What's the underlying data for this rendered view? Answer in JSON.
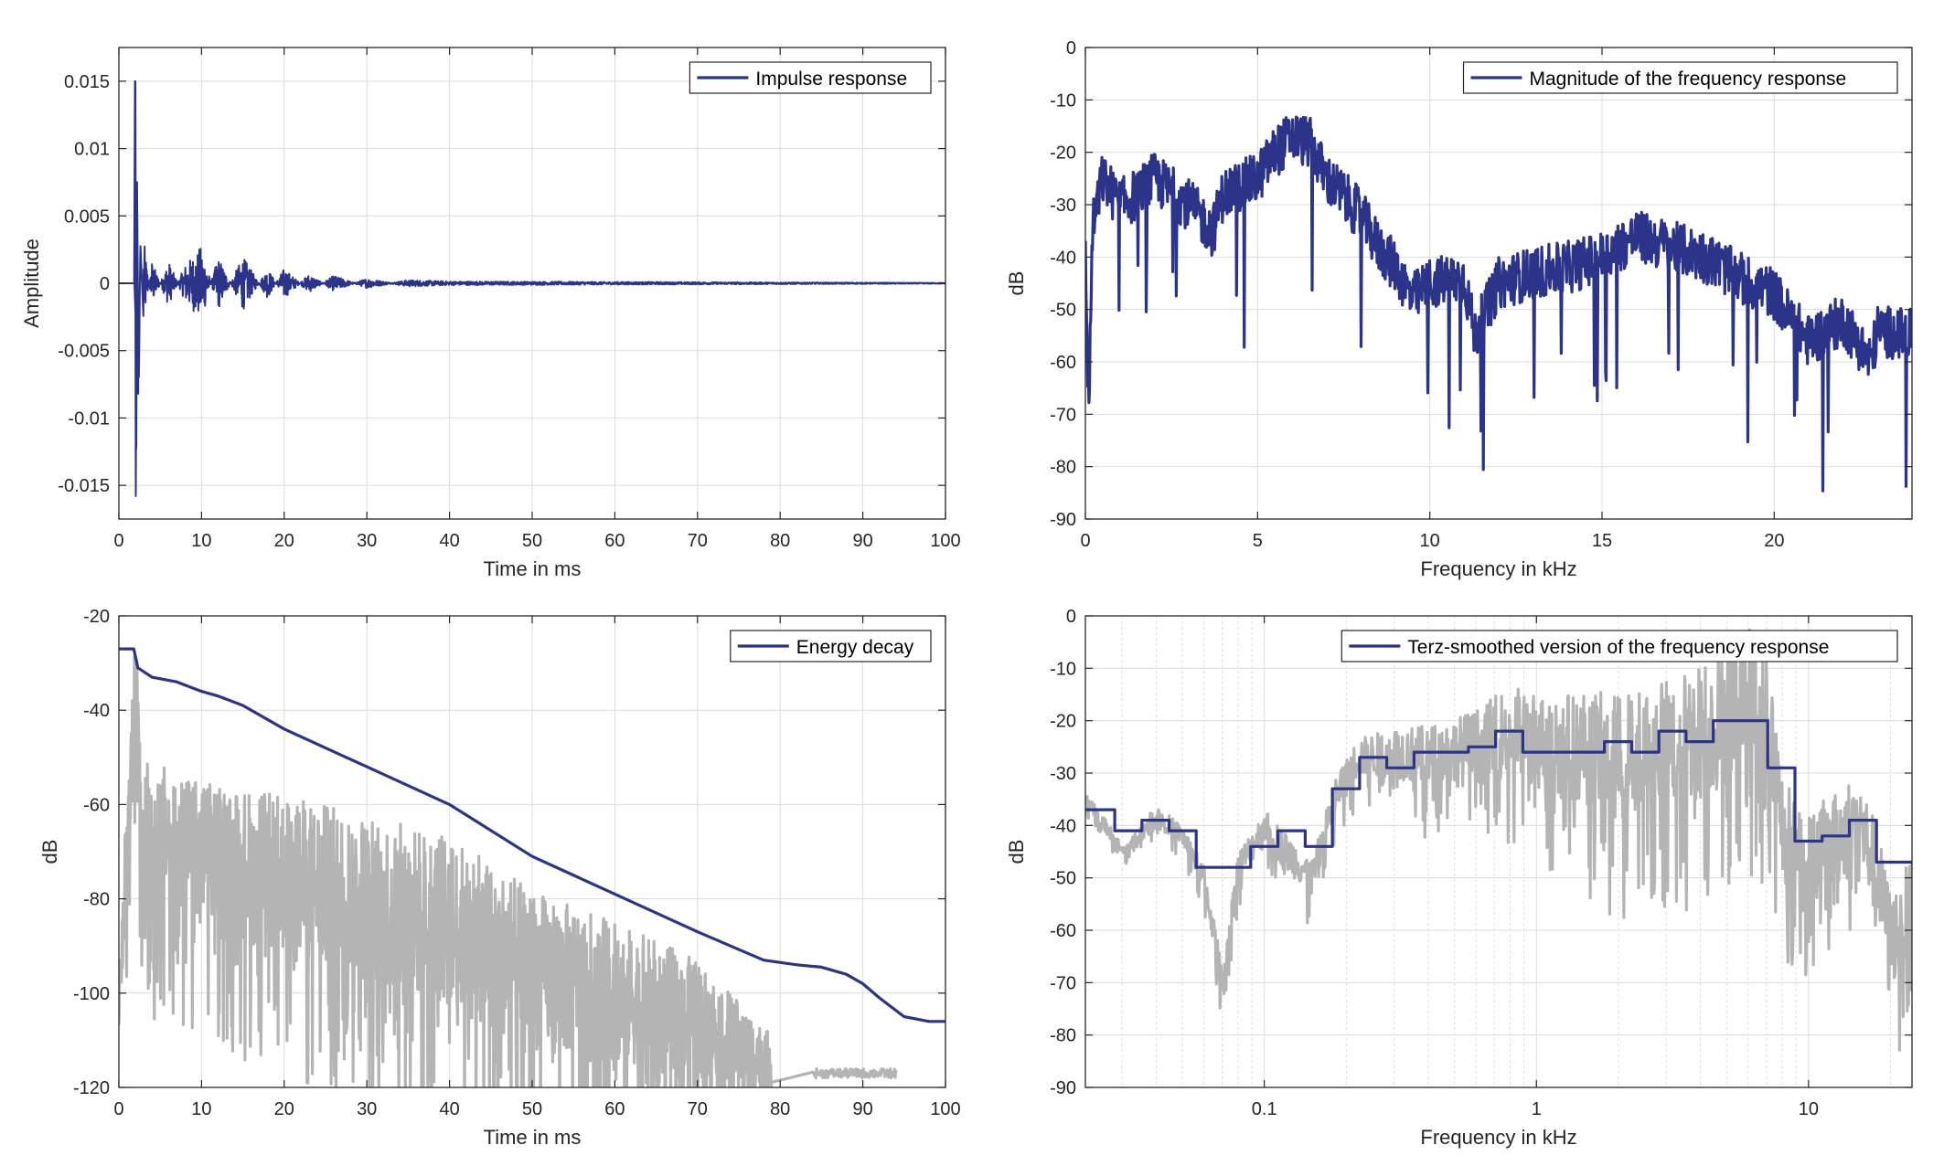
{
  "colors": {
    "primary": "#2b3488",
    "secondary": "#b4b4b4"
  },
  "chart_data": [
    {
      "id": "impulse",
      "type": "line",
      "ylabel": "Amplitude",
      "xlabel": "Time in ms",
      "xlim": [
        0,
        100
      ],
      "ylim": [
        -0.0175,
        0.0175
      ],
      "xticks": [
        0,
        10,
        20,
        30,
        40,
        50,
        60,
        70,
        80,
        90,
        100
      ],
      "yticks": [
        0.015,
        0.01,
        0.005,
        0,
        -0.005,
        -0.01,
        -0.015
      ],
      "ytick_labels": [
        "0.015",
        "0.01",
        "0.005",
        "0",
        "-0.005",
        "-0.01",
        "-0.015"
      ],
      "grid": true,
      "legend": "top-right",
      "series": [
        {
          "name": "Impulse response",
          "color": "#2b3488",
          "x": [
            0,
            1.9,
            2.0,
            2.1,
            2.2,
            2.4,
            2.6,
            3,
            4,
            6,
            8,
            10,
            12,
            15,
            18,
            20,
            23,
            26,
            30,
            35,
            40,
            100
          ],
          "y": [
            0,
            0,
            0.015,
            -0.0158,
            0.0075,
            -0.0082,
            0.003,
            -0.003,
            0.0015,
            -0.0015,
            0.0012,
            0.0025,
            -0.0018,
            0.0018,
            -0.001,
            0.001,
            -0.0006,
            0.0005,
            -0.0003,
            0.0002,
            0.0001,
            0
          ]
        }
      ]
    },
    {
      "id": "magnitude",
      "type": "line",
      "ylabel": "dB",
      "xlabel": "Frequency in kHz",
      "xlim": [
        0,
        24
      ],
      "ylim": [
        -90,
        0
      ],
      "xticks": [
        0,
        5,
        10,
        15,
        20
      ],
      "yticks": [
        0,
        -10,
        -20,
        -30,
        -40,
        -50,
        -60,
        -70,
        -80,
        -90
      ],
      "grid": true,
      "legend": "top-right",
      "series": [
        {
          "name": "Magnitude of the frequency response",
          "color": "#2b3488",
          "x": [
            0,
            0.1,
            0.2,
            0.5,
            1,
            1.5,
            2,
            3,
            3.7,
            4,
            5,
            5.5,
            6,
            6.5,
            7,
            8,
            8.5,
            9,
            9.5,
            10,
            11,
            11.3,
            12,
            13,
            14,
            15,
            16,
            17,
            18,
            19,
            20,
            20.5,
            21,
            22,
            22.8,
            23,
            24
          ],
          "y": [
            -40,
            -70,
            -35,
            -25,
            -30,
            -28,
            -25,
            -30,
            -35,
            -28,
            -25,
            -20,
            -17,
            -18,
            -25,
            -32,
            -38,
            -42,
            -48,
            -45,
            -44,
            -55,
            -45,
            -43,
            -42,
            -40,
            -36,
            -38,
            -40,
            -44,
            -47,
            -52,
            -56,
            -52,
            -60,
            -54,
            -55
          ]
        }
      ]
    },
    {
      "id": "decay",
      "type": "line",
      "ylabel": "dB",
      "xlabel": "Time in ms",
      "xlim": [
        0,
        100
      ],
      "ylim": [
        -120,
        -20
      ],
      "xticks": [
        0,
        10,
        20,
        30,
        40,
        50,
        60,
        70,
        80,
        90,
        100
      ],
      "yticks": [
        -20,
        -40,
        -60,
        -80,
        -100,
        -120
      ],
      "grid": true,
      "legend": "top-right",
      "series": [
        {
          "name": "Energy decay",
          "color": "#2b3488",
          "x": [
            0,
            1.8,
            2.3,
            4,
            7,
            10,
            12,
            15,
            20,
            30,
            40,
            50,
            60,
            70,
            78,
            82,
            85,
            88,
            90,
            92,
            95,
            98,
            100
          ],
          "y": [
            -27,
            -27,
            -31,
            -33,
            -34,
            -36,
            -37,
            -39,
            -44,
            -52,
            -60,
            -71,
            -79,
            -87,
            -93,
            -94,
            -94.5,
            -96,
            -98,
            -101,
            -105,
            -106,
            -106
          ]
        },
        {
          "color": "#b4b4b4",
          "x": [
            0,
            2,
            3,
            10,
            20,
            30,
            40,
            50,
            60,
            70,
            79
          ],
          "y": [
            -100,
            -36,
            -65,
            -70,
            -75,
            -80,
            -85,
            -95,
            -100,
            -105,
            -115
          ],
          "spread": [
            15,
            20,
            25,
            25,
            28,
            30,
            30,
            28,
            25,
            20,
            10
          ]
        }
      ]
    },
    {
      "id": "terz",
      "type": "line",
      "ylabel": "dB",
      "xlabel": "Frequency in kHz",
      "xscale": "log",
      "xlim": [
        0.022,
        24
      ],
      "ylim": [
        -90,
        0
      ],
      "xticks": [
        0.1,
        1,
        10
      ],
      "xtick_labels": [
        "0.1",
        "1",
        "10"
      ],
      "yticks": [
        0,
        -10,
        -20,
        -30,
        -40,
        -50,
        -60,
        -70,
        -80,
        -90
      ],
      "grid": true,
      "legend": "top-right",
      "series": [
        {
          "name": "Terz-smoothed version of the frequency response",
          "color": "#2b3488",
          "x": [
            0.022,
            0.0282,
            0.0355,
            0.0447,
            0.0562,
            0.0708,
            0.0891,
            0.1122,
            0.1413,
            0.1778,
            0.2239,
            0.2818,
            0.3548,
            0.4467,
            0.5623,
            0.7079,
            0.8913,
            1.122,
            1.413,
            1.778,
            2.239,
            2.818,
            3.548,
            4.467,
            5.623,
            7.079,
            8.913,
            11.22,
            14.13,
            17.78,
            24
          ],
          "y": [
            -37,
            -41,
            -39,
            -41,
            -48,
            -48,
            -44,
            -41,
            -44,
            -33,
            -27,
            -29,
            -26,
            -26,
            -25,
            -22,
            -26,
            -26,
            -26,
            -24,
            -26,
            -22,
            -24,
            -20,
            -20,
            -29,
            -43,
            -42,
            -39,
            -47,
            -47
          ]
        },
        {
          "color": "#b4b4b4",
          "x": [
            0.022,
            0.03,
            0.04,
            0.05,
            0.06,
            0.07,
            0.08,
            0.1,
            0.12,
            0.15,
            0.18,
            0.22,
            0.3,
            0.4,
            0.6,
            0.8,
            1,
            1.5,
            2,
            3,
            4,
            5,
            6,
            7,
            8,
            9,
            12,
            15,
            18,
            20,
            24
          ],
          "y": [
            -35,
            -45,
            -38,
            -42,
            -50,
            -70,
            -48,
            -40,
            -45,
            -50,
            -35,
            -27,
            -26,
            -27,
            -25,
            -22,
            -24,
            -25,
            -27,
            -24,
            -22,
            -18,
            -15,
            -18,
            -40,
            -45,
            -44,
            -38,
            -50,
            -62,
            -55
          ],
          "spread": [
            2,
            2,
            3,
            3,
            4,
            5,
            5,
            5,
            6,
            6,
            6,
            6,
            8,
            10,
            12,
            15,
            15,
            18,
            20,
            20,
            22,
            22,
            22,
            22,
            18,
            15,
            15,
            15,
            15,
            15,
            15
          ]
        }
      ]
    }
  ]
}
